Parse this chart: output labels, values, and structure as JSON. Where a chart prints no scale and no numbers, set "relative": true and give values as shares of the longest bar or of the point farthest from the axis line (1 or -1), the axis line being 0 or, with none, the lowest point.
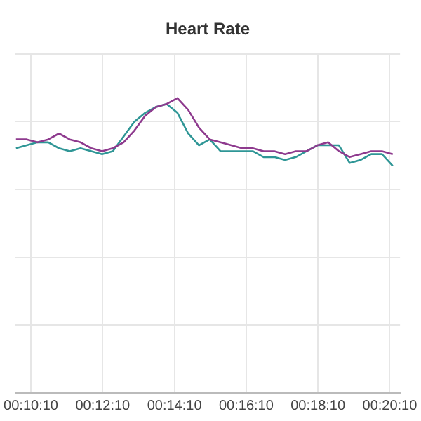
{
  "chart_data": {
    "type": "line",
    "title": "Heart Rate",
    "relative": true,
    "grid": true,
    "legend": false,
    "marker": "none",
    "line_style": "solid",
    "x": [
      0.1625,
      0.1675,
      0.1725,
      0.1775,
      0.1825,
      0.1875,
      0.1925,
      0.1975,
      0.2025,
      0.2075,
      0.2125,
      0.2175,
      0.2225,
      0.2275,
      0.2325,
      0.2375,
      0.2425,
      0.2475,
      0.2525,
      0.2575,
      0.2625,
      0.2675,
      0.2725,
      0.2775,
      0.2825,
      0.2875,
      0.2925,
      0.2975,
      0.3025,
      0.3075,
      0.3125,
      0.3175,
      0.3225,
      0.3275,
      0.3325,
      0.3375
    ],
    "xlim": [
      0.1623,
      0.3409
    ],
    "xticks": [
      {
        "value": 0.169444,
        "label": "00:10:10"
      },
      {
        "value": 0.202778,
        "label": "00:12:10"
      },
      {
        "value": 0.236111,
        "label": "00:14:10"
      },
      {
        "value": 0.269444,
        "label": "00:16:10"
      },
      {
        "value": 0.302778,
        "label": "00:18:10"
      },
      {
        "value": 0.336111,
        "label": "00:20:10"
      }
    ],
    "series": [
      {
        "color": "#8e3a8e",
        "values": [
          0.86,
          0.86,
          0.85,
          0.86,
          0.88,
          0.86,
          0.85,
          0.83,
          0.82,
          0.83,
          0.85,
          0.89,
          0.94,
          0.97,
          0.98,
          1.0,
          0.96,
          0.9,
          0.86,
          0.85,
          0.84,
          0.83,
          0.83,
          0.82,
          0.82,
          0.81,
          0.82,
          0.82,
          0.84,
          0.85,
          0.82,
          0.8,
          0.81,
          0.82,
          0.82,
          0.81
        ]
      },
      {
        "color": "#2f9696",
        "values": [
          0.83,
          0.84,
          0.85,
          0.85,
          0.83,
          0.82,
          0.83,
          0.82,
          0.81,
          0.82,
          0.87,
          0.92,
          0.95,
          0.97,
          0.98,
          0.95,
          0.88,
          0.84,
          0.86,
          0.82,
          0.82,
          0.82,
          0.82,
          0.8,
          0.8,
          0.79,
          0.8,
          0.82,
          0.84,
          0.84,
          0.84,
          0.78,
          0.79,
          0.81,
          0.81,
          0.77
        ]
      }
    ]
  }
}
